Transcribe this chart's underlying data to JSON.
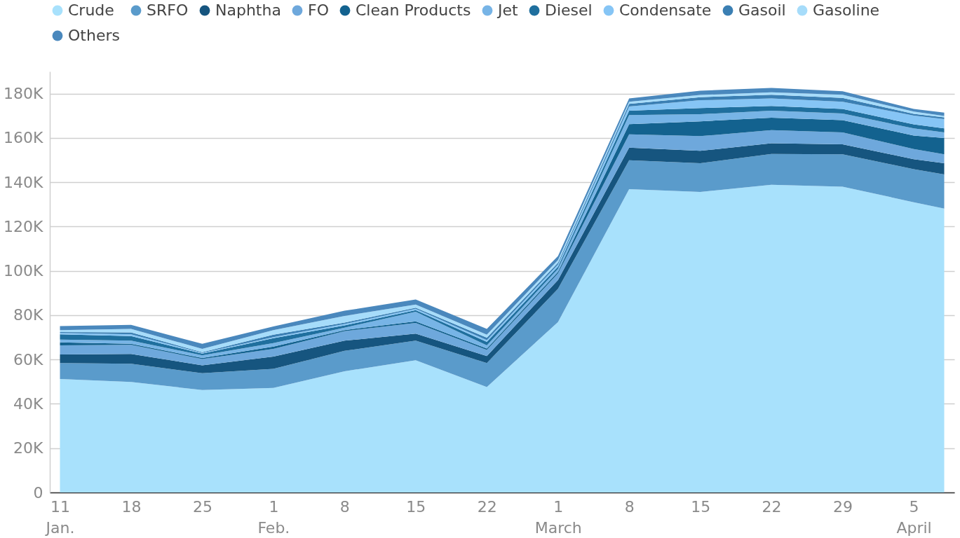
{
  "chart_data": {
    "type": "area",
    "stacked": true,
    "legend": "top",
    "grid": "y",
    "x": [
      "--01-11",
      "--01-18",
      "--01-25",
      "--02-01",
      "--02-08",
      "--02-15",
      "--02-22",
      "--03-01",
      "--03-08",
      "--03-15",
      "--03-22",
      "--03-29",
      "--04-05",
      "--04-08"
    ],
    "xlim": [
      "--01-10",
      "--04-09"
    ],
    "xticks": [
      {
        "value": "--01-11",
        "label": "11\nJan."
      },
      {
        "value": "--01-18",
        "label": "18"
      },
      {
        "value": "--01-25",
        "label": "25"
      },
      {
        "value": "--02-01",
        "label": "1\nFeb."
      },
      {
        "value": "--02-08",
        "label": "8"
      },
      {
        "value": "--02-15",
        "label": "15"
      },
      {
        "value": "--02-22",
        "label": "22"
      },
      {
        "value": "--03-01",
        "label": "1\nMarch"
      },
      {
        "value": "--03-08",
        "label": "8"
      },
      {
        "value": "--03-15",
        "label": "15"
      },
      {
        "value": "--03-22",
        "label": "22"
      },
      {
        "value": "--03-29",
        "label": "29"
      },
      {
        "value": "--04-05",
        "label": "5\nApril"
      }
    ],
    "ylim": [
      0,
      190000
    ],
    "yticks": [
      {
        "value": 0,
        "label": "0"
      },
      {
        "value": 20000,
        "label": "20K"
      },
      {
        "value": 40000,
        "label": "40K"
      },
      {
        "value": 60000,
        "label": "60K"
      },
      {
        "value": 80000,
        "label": "80K"
      },
      {
        "value": 100000,
        "label": "100K"
      },
      {
        "value": 120000,
        "label": "120K"
      },
      {
        "value": 140000,
        "label": "140K"
      },
      {
        "value": 160000,
        "label": "160K"
      },
      {
        "value": 180000,
        "label": "180K"
      }
    ],
    "series": [
      {
        "name": "Crude",
        "color": "#a8e1fc",
        "values": [
          51200,
          49900,
          46200,
          47200,
          54700,
          59700,
          47600,
          76900,
          136900,
          135600,
          138900,
          138000,
          131000,
          128100
        ]
      },
      {
        "name": "SRFO",
        "color": "#5a9bcb",
        "values": [
          7200,
          8200,
          7600,
          8600,
          9200,
          8800,
          10800,
          15000,
          13000,
          13000,
          13900,
          14600,
          14900,
          15400
        ]
      },
      {
        "name": "Naphtha",
        "color": "#16557f",
        "values": [
          3900,
          4400,
          3600,
          5500,
          4600,
          3200,
          3200,
          4000,
          5700,
          5600,
          4800,
          4500,
          4500,
          5100
        ]
      },
      {
        "name": "FO",
        "color": "#6ea8dc",
        "values": [
          4100,
          4100,
          2800,
          3500,
          4300,
          4800,
          2700,
          3000,
          6000,
          6600,
          5900,
          5400,
          4600,
          4000
        ]
      },
      {
        "name": "Clean Products",
        "color": "#13628f",
        "values": [
          1300,
          500,
          500,
          1000,
          500,
          700,
          700,
          700,
          4600,
          6700,
          5600,
          5500,
          6100,
          7400
        ]
      },
      {
        "name": "Jet",
        "color": "#77b4e6",
        "values": [
          1300,
          1400,
          1200,
          1600,
          1100,
          4400,
          1400,
          1300,
          4100,
          3200,
          3200,
          3000,
          3200,
          2500
        ]
      },
      {
        "name": "Diesel",
        "color": "#1f6f9e",
        "values": [
          2400,
          2100,
          800,
          2200,
          1000,
          700,
          1600,
          1000,
          2000,
          2800,
          2100,
          2100,
          1800,
          1800
        ]
      },
      {
        "name": "Condensate",
        "color": "#86c5f5",
        "values": [
          600,
          800,
          300,
          500,
          600,
          600,
          800,
          1000,
          1900,
          3500,
          3400,
          3200,
          4000,
          4200
        ]
      },
      {
        "name": "Gasoil",
        "color": "#3b7fb3",
        "values": [
          400,
          800,
          300,
          1100,
          700,
          500,
          1100,
          800,
          1200,
          1400,
          1700,
          1800,
          800,
          800
        ]
      },
      {
        "name": "Gasoline",
        "color": "#a6dcfa",
        "values": [
          900,
          1600,
          1500,
          2100,
          3000,
          1400,
          1300,
          1200,
          900,
          1000,
          1100,
          1400,
          1000,
          600
        ]
      },
      {
        "name": "Others",
        "color": "#4a88bd",
        "values": [
          1800,
          1800,
          2300,
          1600,
          2300,
          2300,
          2600,
          1800,
          1500,
          1900,
          2000,
          1600,
          1200,
          1500
        ]
      }
    ]
  }
}
